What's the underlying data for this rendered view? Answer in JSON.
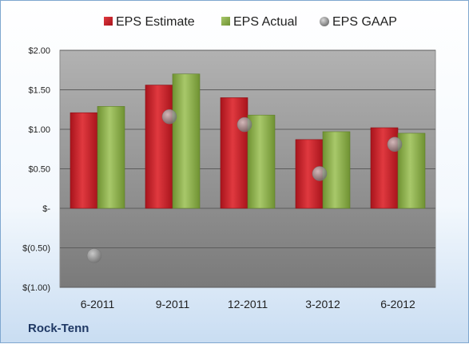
{
  "company_label": "Rock-Tenn",
  "colors": {
    "estimate": "#d0202a",
    "actual": "#8fb449",
    "gaap": "#a6a6a6",
    "plot_top": "#b2b2b2",
    "plot_bottom": "#7a7a7a",
    "frame_border": "#7fa7cf",
    "label_text": "#1f1f1f",
    "company_text": "#1f3864"
  },
  "chart_data": {
    "type": "bar",
    "title": "",
    "xlabel": "",
    "ylabel": "",
    "categories": [
      "6-2011",
      "9-2011",
      "12-2011",
      "3-2012",
      "6-2012"
    ],
    "series": [
      {
        "name": "EPS Estimate",
        "kind": "bar",
        "color": "#d0202a",
        "values": [
          1.21,
          1.56,
          1.4,
          0.87,
          1.02
        ]
      },
      {
        "name": "EPS Actual",
        "kind": "bar",
        "color": "#8fb449",
        "values": [
          1.29,
          1.7,
          1.18,
          0.97,
          0.95
        ]
      },
      {
        "name": "EPS GAAP",
        "kind": "marker",
        "color": "#a6a6a6",
        "values": [
          -0.6,
          1.16,
          1.06,
          0.44,
          0.81
        ]
      }
    ],
    "ylim": [
      -1.0,
      2.0
    ],
    "ytick_values": [
      2.0,
      1.5,
      1.0,
      0.5,
      0.0,
      -0.5,
      -1.0
    ],
    "ytick_labels": [
      "$2.00",
      "$1.50",
      "$1.00",
      "$0.50",
      "$-",
      "$(0.50)",
      "$(1.00)"
    ],
    "grid": true,
    "legend_position": "top"
  }
}
